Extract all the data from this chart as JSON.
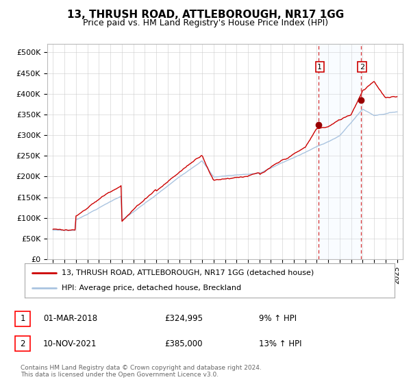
{
  "title": "13, THRUSH ROAD, ATTLEBOROUGH, NR17 1GG",
  "subtitle": "Price paid vs. HM Land Registry's House Price Index (HPI)",
  "ytick_labels": [
    "£0",
    "£50K",
    "£100K",
    "£150K",
    "£200K",
    "£250K",
    "£300K",
    "£350K",
    "£400K",
    "£450K",
    "£500K"
  ],
  "yticks": [
    0,
    50000,
    100000,
    150000,
    200000,
    250000,
    300000,
    350000,
    400000,
    450000,
    500000
  ],
  "xlim_start": 1994.5,
  "xlim_end": 2025.5,
  "ylim": [
    0,
    520000
  ],
  "hpi_color": "#aac4e0",
  "price_color": "#cc0000",
  "marker1_date": 2018.16,
  "marker1_price": 324995,
  "marker1_label": "01-MAR-2018",
  "marker1_price_str": "£324,995",
  "marker1_pct": "9% ↑ HPI",
  "marker2_date": 2021.86,
  "marker2_price": 385000,
  "marker2_label": "10-NOV-2021",
  "marker2_price_str": "£385,000",
  "marker2_pct": "13% ↑ HPI",
  "legend_line1": "13, THRUSH ROAD, ATTLEBOROUGH, NR17 1GG (detached house)",
  "legend_line2": "HPI: Average price, detached house, Breckland",
  "footnote": "Contains HM Land Registry data © Crown copyright and database right 2024.\nThis data is licensed under the Open Government Licence v3.0.",
  "background_color": "#ffffff",
  "plot_bg_color": "#ffffff",
  "grid_color": "#cccccc",
  "shade_color": "#ddeeff"
}
